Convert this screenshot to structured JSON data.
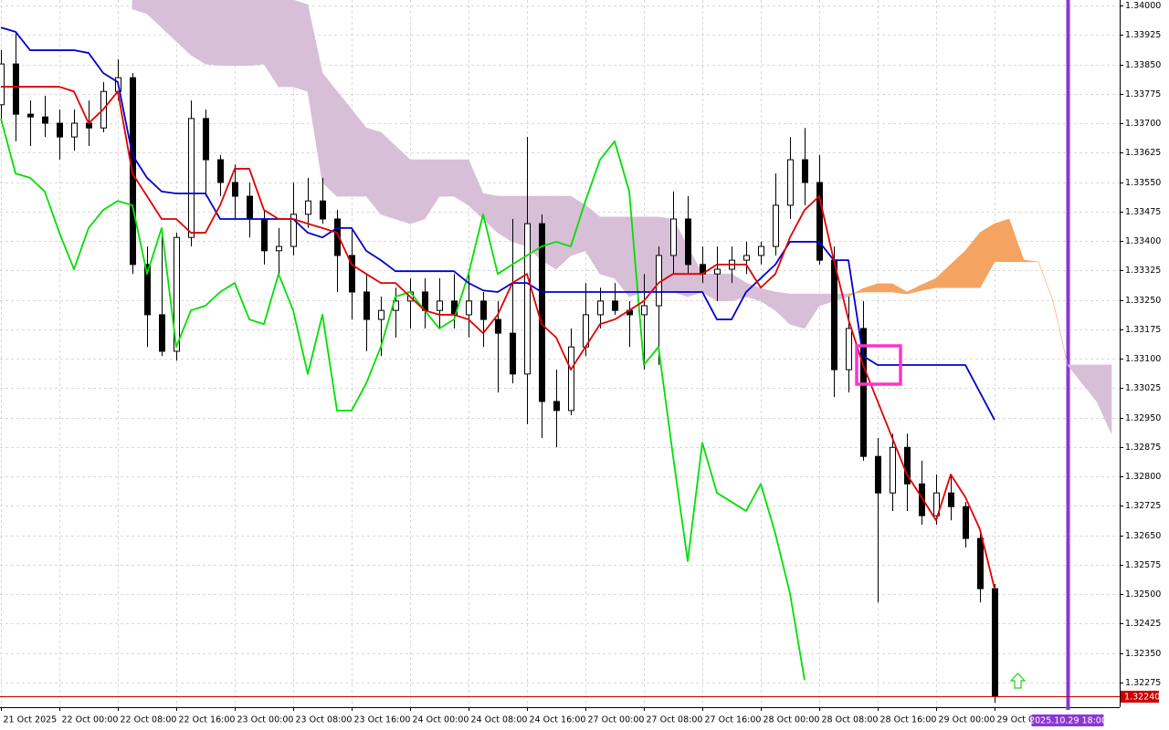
{
  "chart_data": {
    "type": "candlestick",
    "categories": [
      "21 Oct 2025",
      null,
      null,
      null,
      "22 Oct 00:00",
      null,
      null,
      null,
      "22 Oct 08:00",
      null,
      null,
      null,
      "22 Oct 16:00",
      null,
      null,
      null,
      "23 Oct 00:00",
      null,
      null,
      null,
      "23 Oct 08:00",
      null,
      null,
      null,
      "23 Oct 16:00",
      null,
      null,
      null,
      "24 Oct 00:00",
      null,
      null,
      null,
      "24 Oct 08:00",
      null,
      null,
      null,
      "24 Oct 16:00",
      null,
      null,
      null,
      "27 Oct 00:00",
      null,
      null,
      null,
      "27 Oct 08:00",
      null,
      null,
      null,
      "27 Oct 16:00",
      null,
      null,
      null,
      "28 Oct 00:00",
      null,
      null,
      null,
      "28 Oct 08:00",
      null,
      null,
      null,
      "28 Oct 16:00",
      null,
      null,
      null,
      "29 Oct 00:00",
      null,
      null,
      null,
      "29 Oct 08:00",
      null,
      null,
      null,
      null,
      "2025.10.29 18:00",
      null,
      null,
      null
    ],
    "open": [
      1.33747,
      1.33851,
      1.33723,
      1.33716,
      1.337,
      1.33665,
      1.337,
      1.33688,
      1.33781,
      1.33816,
      1.3334,
      1.33212,
      1.33119,
      1.33409,
      1.33712,
      1.33607,
      1.33549,
      1.33514,
      1.33456,
      1.33375,
      1.33386,
      1.33468,
      1.33502,
      1.33456,
      1.33363,
      1.3327,
      1.332,
      1.33223,
      1.33247,
      1.3327,
      1.33223,
      1.33247,
      1.33212,
      1.33247,
      1.332,
      1.33165,
      1.33061,
      1.33444,
      1.32991,
      1.32968,
      1.3313,
      1.33212,
      1.33247,
      1.33223,
      1.33212,
      1.33235,
      1.33363,
      1.33456,
      1.3334,
      1.33316,
      1.33328,
      1.33351,
      1.33363,
      1.33386,
      1.33491,
      1.33607,
      1.33549,
      1.33351,
      1.33072,
      1.33177,
      1.32851,
      1.32758,
      1.32874,
      1.32781,
      1.327,
      1.32758,
      1.32723,
      1.32642,
      1.32514,
      null,
      null,
      null,
      null,
      null,
      null,
      null,
      null
    ],
    "high": [
      1.33886,
      1.33933,
      1.33758,
      1.3377,
      1.33735,
      1.33735,
      1.33758,
      1.33805,
      1.33863,
      1.33828,
      1.33386,
      1.33433,
      1.33421,
      1.33758,
      1.33735,
      1.33619,
      1.33595,
      1.33549,
      1.33479,
      1.33433,
      1.33549,
      1.33561,
      1.33561,
      1.33479,
      1.33433,
      1.33316,
      1.33258,
      1.33281,
      1.33305,
      1.33305,
      1.33305,
      1.33316,
      1.33328,
      1.3327,
      1.33247,
      1.33456,
      1.33665,
      1.33468,
      1.33072,
      1.33177,
      1.33293,
      1.33281,
      1.33293,
      1.33247,
      1.33316,
      1.33386,
      1.33526,
      1.33514,
      1.33386,
      1.33386,
      1.33386,
      1.33398,
      1.33398,
      1.33572,
      1.33665,
      1.33688,
      1.33619,
      1.33386,
      1.33258,
      1.33247,
      1.32898,
      1.32909,
      1.32909,
      1.3284,
      1.32805,
      1.32805,
      1.32735,
      1.32654,
      1.32526,
      null,
      null,
      null,
      null,
      null,
      null,
      null,
      null
    ],
    "low": [
      1.33712,
      1.33654,
      1.33642,
      1.33665,
      1.33607,
      1.3363,
      1.33642,
      1.33677,
      1.33758,
      1.33316,
      1.3313,
      1.33107,
      1.33095,
      1.33386,
      1.33514,
      1.33514,
      1.33456,
      1.33409,
      1.3334,
      1.33316,
      1.33363,
      1.33433,
      1.33444,
      1.3327,
      1.332,
      1.33119,
      1.33107,
      1.33154,
      1.33177,
      1.33177,
      1.33177,
      1.33177,
      1.33154,
      1.3313,
      1.33014,
      1.33037,
      1.32933,
      1.32898,
      1.32874,
      1.32956,
      1.33107,
      1.33177,
      1.33212,
      1.3313,
      1.33072,
      1.33084,
      1.33316,
      1.33316,
      1.33293,
      1.33247,
      1.33293,
      1.33316,
      1.3334,
      1.33363,
      1.33456,
      1.33491,
      1.3334,
      1.33002,
      1.33014,
      1.3284,
      1.32479,
      1.32712,
      1.32712,
      1.32677,
      1.32677,
      1.32688,
      1.32619,
      1.32479,
      1.32223,
      null,
      null,
      null,
      null,
      null,
      null,
      null,
      null
    ],
    "close": [
      1.33851,
      1.33723,
      1.33716,
      1.337,
      1.33665,
      1.337,
      1.33688,
      1.33781,
      1.33816,
      1.3334,
      1.33212,
      1.33119,
      1.33409,
      1.33712,
      1.33607,
      1.33549,
      1.33514,
      1.33456,
      1.33375,
      1.33386,
      1.33468,
      1.33502,
      1.33456,
      1.33363,
      1.3327,
      1.332,
      1.33223,
      1.33247,
      1.3327,
      1.33223,
      1.33247,
      1.33212,
      1.33247,
      1.332,
      1.33165,
      1.33061,
      1.33444,
      1.32991,
      1.32968,
      1.3313,
      1.33212,
      1.33247,
      1.33223,
      1.33212,
      1.33235,
      1.33363,
      1.33456,
      1.3334,
      1.33316,
      1.33328,
      1.33351,
      1.33363,
      1.33386,
      1.33491,
      1.33607,
      1.33549,
      1.33351,
      1.33072,
      1.33177,
      1.32851,
      1.32758,
      1.32874,
      1.32781,
      1.327,
      1.32758,
      1.32723,
      1.32642,
      1.32514,
      1.3224,
      null,
      null,
      null,
      null,
      null,
      null,
      null,
      null
    ],
    "up_color": "#ffffff",
    "down_color": "#000000",
    "series": [
      {
        "color": "#00e000",
        "values": [
          1.33712,
          1.33572,
          1.33561,
          1.33526,
          1.33421,
          1.33328,
          1.33433,
          1.33479,
          1.33502,
          1.33491,
          1.33316,
          1.33433,
          1.3313,
          1.33223,
          1.33235,
          1.3327,
          1.33293,
          1.332,
          1.33188,
          1.33316,
          1.33223,
          1.33061,
          1.33212,
          1.32968,
          1.32968,
          1.33037,
          1.3313,
          1.33258,
          1.3327,
          1.33223,
          1.33177,
          1.332,
          1.33316,
          1.33468,
          1.33316,
          1.3334,
          1.33363,
          1.33386,
          1.33398,
          1.33386,
          1.33502,
          1.33607,
          1.33654,
          1.33526,
          1.33084,
          1.3313,
          1.32851,
          1.32584,
          1.32886,
          1.32758,
          1.32735,
          1.32712,
          1.32781,
          1.32654,
          1.32502,
          1.32281,
          null,
          null,
          null,
          null,
          null,
          null,
          null,
          null,
          null,
          null,
          null,
          null,
          null,
          null,
          null,
          null,
          null,
          null,
          null,
          null,
          null
        ]
      },
      {
        "color": "#0000cc",
        "values": [
          1.33944,
          1.33933,
          1.33886,
          1.33886,
          1.33886,
          1.33886,
          1.33879,
          1.33828,
          1.33805,
          1.33619,
          1.33561,
          1.33526,
          1.33521,
          1.33521,
          1.33521,
          1.33456,
          1.33456,
          1.33456,
          1.33456,
          1.33456,
          1.33456,
          1.33421,
          1.33409,
          1.33433,
          1.33433,
          1.33375,
          1.33351,
          1.33323,
          1.33323,
          1.33323,
          1.33323,
          1.33323,
          1.33293,
          1.33274,
          1.3327,
          1.33293,
          1.33293,
          1.3327,
          1.3327,
          1.3327,
          1.3327,
          1.3327,
          1.3327,
          1.3327,
          1.3327,
          1.3327,
          1.3327,
          1.3327,
          1.3327,
          1.332,
          1.332,
          1.3327,
          1.33305,
          1.3334,
          1.33398,
          1.33398,
          1.33398,
          1.33351,
          1.33351,
          1.33107,
          1.33084,
          1.33084,
          1.33084,
          1.33084,
          1.33084,
          1.33084,
          1.33084,
          1.33014,
          1.32944,
          null,
          null,
          null,
          null,
          null,
          null,
          null,
          null
        ]
      },
      {
        "color": "#e00000",
        "values": [
          1.33793,
          1.33793,
          1.33793,
          1.33793,
          1.33793,
          1.33781,
          1.337,
          1.33735,
          1.33781,
          1.33572,
          1.33514,
          1.33456,
          1.33456,
          1.33421,
          1.33421,
          1.33491,
          1.33584,
          1.33584,
          1.33479,
          1.33456,
          1.33456,
          1.33444,
          1.33433,
          1.33421,
          1.3334,
          1.33316,
          1.33293,
          1.33293,
          1.33258,
          1.33223,
          1.33212,
          1.33212,
          1.332,
          1.33165,
          1.33212,
          1.33293,
          1.33316,
          1.33188,
          1.33154,
          1.33072,
          1.3313,
          1.33188,
          1.332,
          1.33223,
          1.33247,
          1.33293,
          1.33316,
          1.33316,
          1.33316,
          1.3334,
          1.3334,
          1.3334,
          1.33281,
          1.33316,
          1.33409,
          1.33479,
          1.33514,
          1.33351,
          1.332,
          1.33084,
          1.32991,
          1.32898,
          1.32805,
          1.32747,
          1.32688,
          1.32805,
          1.32747,
          1.32665,
          1.32514,
          null,
          null,
          null,
          null,
          null,
          null,
          null,
          null
        ]
      }
    ],
    "cloud": {
      "bull_color": "#f4a460",
      "bear_color": "#d8bfd8",
      "span_a": [
        null,
        null,
        null,
        null,
        null,
        null,
        null,
        null,
        null,
        1.33991,
        1.33979,
        1.33944,
        1.33909,
        1.33874,
        1.33851,
        1.33847,
        1.33847,
        1.33847,
        1.33851,
        1.33793,
        1.33793,
        1.33781,
        1.33549,
        1.33514,
        1.33514,
        1.33514,
        1.33468,
        1.33456,
        1.33444,
        1.33456,
        1.33514,
        1.33514,
        1.33491,
        1.33456,
        1.33421,
        1.33398,
        1.33386,
        1.33351,
        1.33328,
        1.33363,
        1.33375,
        1.33316,
        1.33305,
        1.33258,
        1.3327,
        1.3327,
        1.3327,
        1.33258,
        1.3327,
        1.33247,
        1.33247,
        1.33258,
        1.33247,
        1.33223,
        1.33188,
        1.33177,
        1.33235,
        1.33247,
        1.33258,
        1.33279,
        1.33291,
        1.33291,
        1.3327,
        1.33288,
        1.33305,
        1.3334,
        1.33375,
        1.33421,
        1.33444,
        1.33456,
        1.33351,
        1.33347,
        1.33247,
        1.33084,
        1.33037,
        1.32991,
        1.32909
      ],
      "span_b": [
        null,
        null,
        null,
        null,
        null,
        null,
        null,
        null,
        null,
        1.34014,
        1.34014,
        1.34014,
        1.34014,
        1.34014,
        1.34014,
        1.34014,
        1.34014,
        1.34014,
        1.34014,
        1.34014,
        1.34014,
        1.34002,
        1.33828,
        1.33781,
        1.33735,
        1.33688,
        1.33677,
        1.33642,
        1.33607,
        1.33607,
        1.33607,
        1.33607,
        1.33607,
        1.33521,
        1.33514,
        1.33514,
        1.33514,
        1.33514,
        1.33514,
        1.33514,
        1.33491,
        1.33461,
        1.33461,
        1.33461,
        1.33461,
        1.33461,
        1.33456,
        1.33386,
        1.33316,
        1.33316,
        1.33316,
        1.33293,
        1.33279,
        1.3327,
        1.33265,
        1.33265,
        1.33265,
        1.33265,
        1.33265,
        1.3327,
        1.3327,
        1.3327,
        1.33265,
        1.33274,
        1.33281,
        1.33281,
        1.33281,
        1.33281,
        1.33347,
        1.33347,
        1.33347,
        1.33347,
        1.33247,
        1.33084,
        1.33084,
        1.33084,
        1.33084
      ]
    },
    "ylim": [
      1.32212,
      1.34014
    ],
    "yticks": [
      {
        "value": 1.34,
        "label": "1.34000"
      },
      {
        "value": 1.33925,
        "label": "1.33925"
      },
      {
        "value": 1.3385,
        "label": "1.33850"
      },
      {
        "value": 1.33775,
        "label": "1.33775"
      },
      {
        "value": 1.337,
        "label": "1.33700"
      },
      {
        "value": 1.33625,
        "label": "1.33625"
      },
      {
        "value": 1.3355,
        "label": "1.33550"
      },
      {
        "value": 1.33475,
        "label": "1.33475"
      },
      {
        "value": 1.334,
        "label": "1.33400"
      },
      {
        "value": 1.33325,
        "label": "1.33325"
      },
      {
        "value": 1.3325,
        "label": "1.33250"
      },
      {
        "value": 1.33175,
        "label": "1.33175"
      },
      {
        "value": 1.331,
        "label": "1.33100"
      },
      {
        "value": 1.33025,
        "label": "1.33025"
      },
      {
        "value": 1.3295,
        "label": "1.32950"
      },
      {
        "value": 1.32875,
        "label": "1.32875"
      },
      {
        "value": 1.328,
        "label": "1.32800"
      },
      {
        "value": 1.32725,
        "label": "1.32725"
      },
      {
        "value": 1.3265,
        "label": "1.32650"
      },
      {
        "value": 1.32575,
        "label": "1.32575"
      },
      {
        "value": 1.325,
        "label": "1.32500"
      },
      {
        "value": 1.32425,
        "label": "1.32425"
      },
      {
        "value": 1.3235,
        "label": "1.32350"
      },
      {
        "value": 1.32275,
        "label": "1.32275"
      }
    ],
    "grid": true,
    "last_price": {
      "value": 1.3224,
      "label": "1.32240",
      "color": "#cc0000"
    },
    "vline_color": "#8b35d6"
  }
}
